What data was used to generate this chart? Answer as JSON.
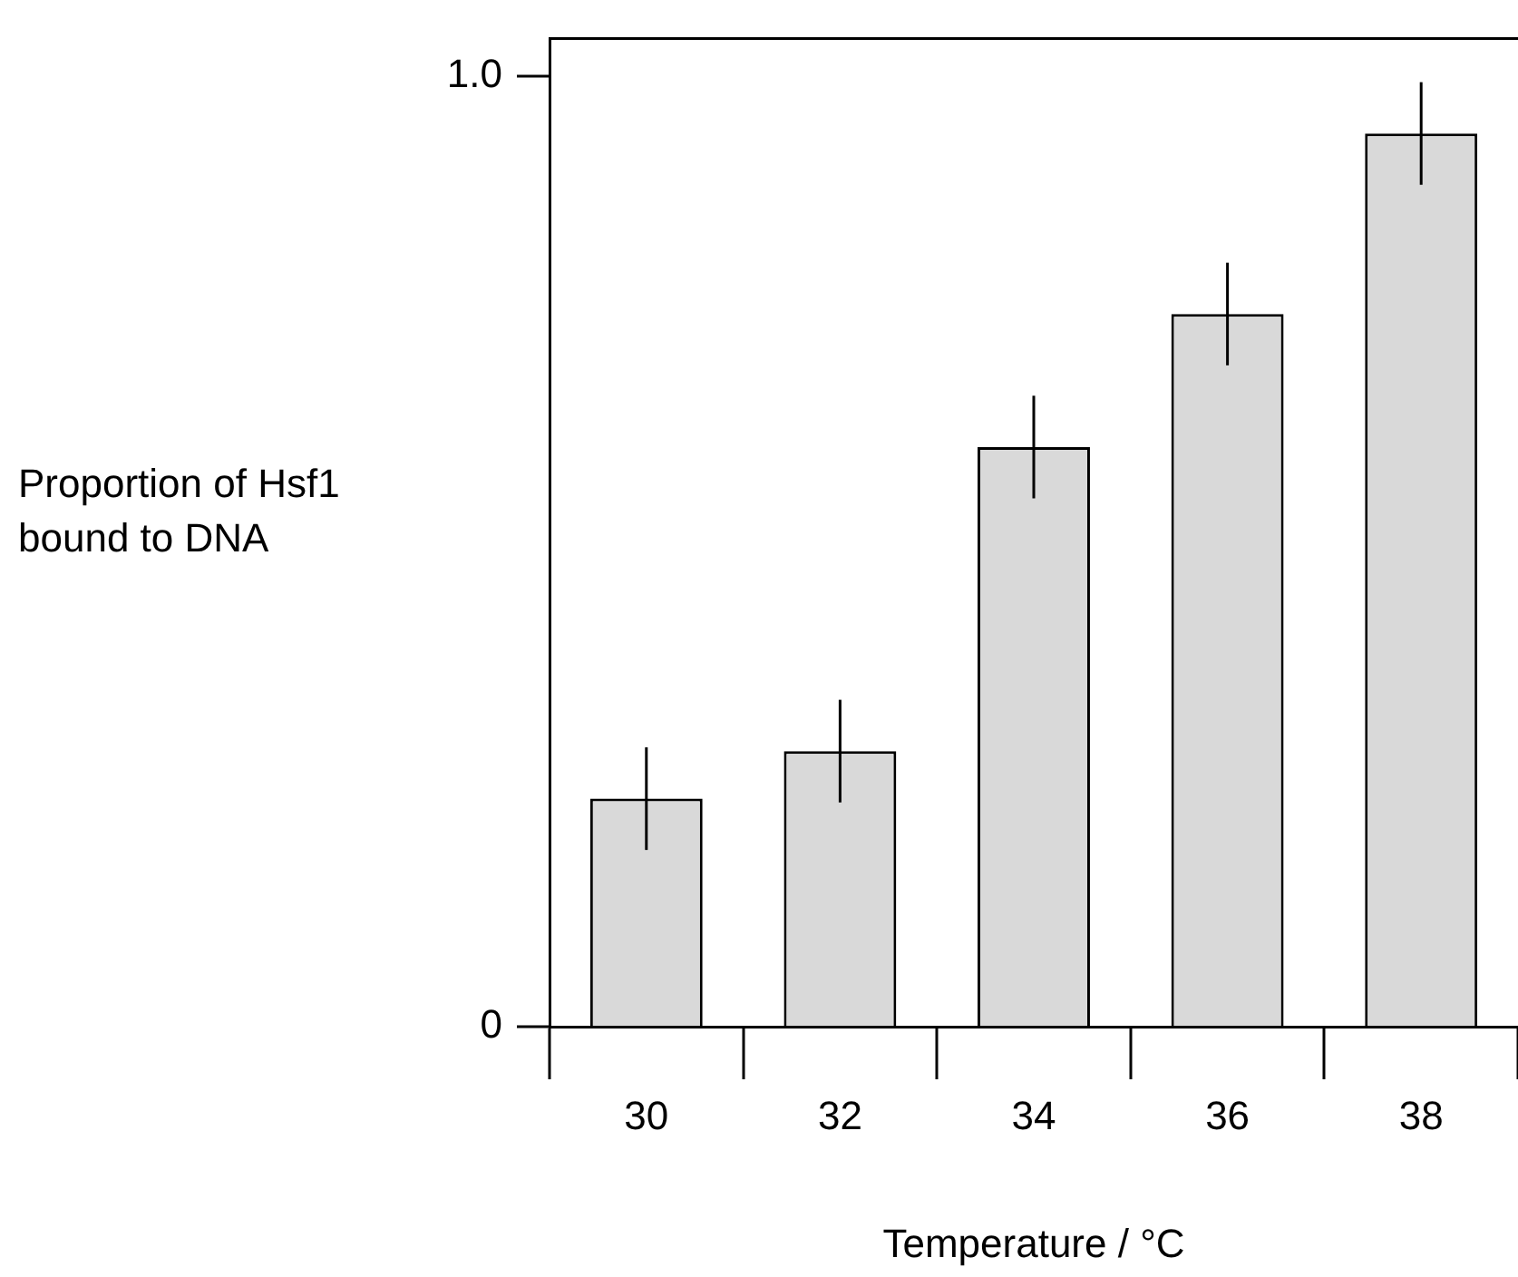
{
  "chart_data": {
    "type": "bar",
    "xlabel": "Temperature / °C",
    "ylabel": "Proportion of Hsf1 bound to DNA",
    "categories": [
      "30",
      "32",
      "34",
      "36",
      "38"
    ],
    "values": [
      0.24,
      0.29,
      0.61,
      0.75,
      0.94
    ],
    "errors": [
      0.054,
      0.054,
      0.054,
      0.054,
      0.054
    ],
    "color": "#d9d9d9",
    "ylim": [
      0,
      1.04
    ],
    "yticks": [
      0,
      {
        "value": 1,
        "label": "1.0"
      }
    ],
    "grid": false,
    "legend": false
  }
}
